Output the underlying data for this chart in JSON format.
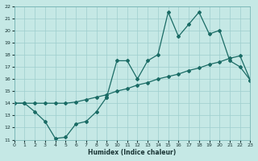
{
  "xlabel": "Humidex (Indice chaleur)",
  "bg_color": "#c5e8e5",
  "grid_color": "#9ecece",
  "line_color": "#1a6b65",
  "xlim": [
    0,
    23
  ],
  "ylim": [
    11,
    22
  ],
  "xticks": [
    0,
    1,
    2,
    3,
    4,
    5,
    6,
    7,
    8,
    9,
    10,
    11,
    12,
    13,
    14,
    15,
    16,
    17,
    18,
    19,
    20,
    21,
    22,
    23
  ],
  "yticks": [
    11,
    12,
    13,
    14,
    15,
    16,
    17,
    18,
    19,
    20,
    21,
    22
  ],
  "series_low": {
    "x": [
      0,
      1,
      2,
      3,
      4,
      5,
      6,
      7,
      8,
      9
    ],
    "y": [
      14,
      14,
      13.3,
      12.5,
      11.1,
      11.2,
      12.3,
      12.5,
      13.3,
      14.5
    ]
  },
  "series_trend": {
    "x": [
      0,
      1,
      2,
      3,
      4,
      5,
      6,
      7,
      8,
      9,
      10,
      11,
      12,
      13,
      14,
      15,
      16,
      17,
      18,
      19,
      20,
      21,
      22,
      23
    ],
    "y": [
      14,
      14,
      14,
      14,
      14,
      14.0,
      14.1,
      14.3,
      14.5,
      14.7,
      15.0,
      15.2,
      15.5,
      15.7,
      16.0,
      16.2,
      16.4,
      16.7,
      16.9,
      17.2,
      17.4,
      17.7,
      17.9,
      15.9
    ]
  },
  "series_high": {
    "x": [
      9,
      10,
      11,
      12,
      13,
      14,
      15,
      16,
      17,
      18,
      19,
      20,
      21,
      22,
      23
    ],
    "y": [
      14.5,
      17.5,
      17.5,
      16.0,
      17.5,
      18.0,
      21.5,
      19.5,
      20.5,
      21.5,
      19.7,
      20.0,
      17.5,
      17.0,
      15.9
    ]
  }
}
